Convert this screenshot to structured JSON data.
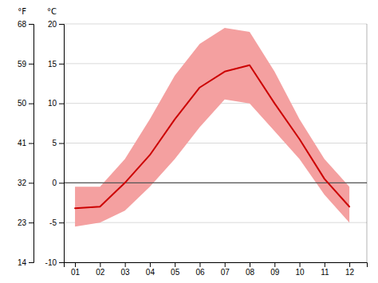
{
  "chart_data": {
    "type": "line",
    "x": [
      1,
      2,
      3,
      4,
      5,
      6,
      7,
      8,
      9,
      10,
      11,
      12
    ],
    "xlim": [
      0.55,
      12.7
    ],
    "xticks": [
      {
        "value": 1,
        "label": "01"
      },
      {
        "value": 2,
        "label": "02"
      },
      {
        "value": 3,
        "label": "03"
      },
      {
        "value": 4,
        "label": "04"
      },
      {
        "value": 5,
        "label": "05"
      },
      {
        "value": 6,
        "label": "06"
      },
      {
        "value": 7,
        "label": "07"
      },
      {
        "value": 8,
        "label": "08"
      },
      {
        "value": 9,
        "label": "09"
      },
      {
        "value": 10,
        "label": "10"
      },
      {
        "value": 11,
        "label": "11"
      },
      {
        "value": 12,
        "label": "12"
      }
    ],
    "ylabel": "°C",
    "ylim": [
      -10,
      20
    ],
    "yticks": [
      -10,
      -5,
      0,
      5,
      10,
      15,
      20
    ],
    "y2label": "°F",
    "y2lim": [
      14,
      68
    ],
    "y2ticks": [
      14,
      23,
      32,
      41,
      50,
      59,
      68
    ],
    "grid": true,
    "series": [
      {
        "type": "band",
        "color": "#f4a0a0",
        "values": [
          -0.5,
          -0.5,
          3.0,
          8.0,
          13.5,
          17.5,
          19.5,
          19.0,
          14.0,
          8.0,
          3.0,
          -0.5
        ],
        "low": [
          -5.5,
          -5.0,
          -3.5,
          -0.5,
          3.0,
          7.0,
          10.5,
          10.0,
          6.5,
          3.0,
          -1.5,
          -5.0
        ]
      },
      {
        "type": "line",
        "color": "#cc0000",
        "values": [
          -3.2,
          -3.0,
          0.0,
          3.5,
          8.0,
          12.0,
          14.0,
          14.8,
          10.0,
          5.5,
          0.5,
          -3.0
        ]
      }
    ],
    "hlines": [
      {
        "value": 0,
        "color": "#555555"
      }
    ]
  }
}
